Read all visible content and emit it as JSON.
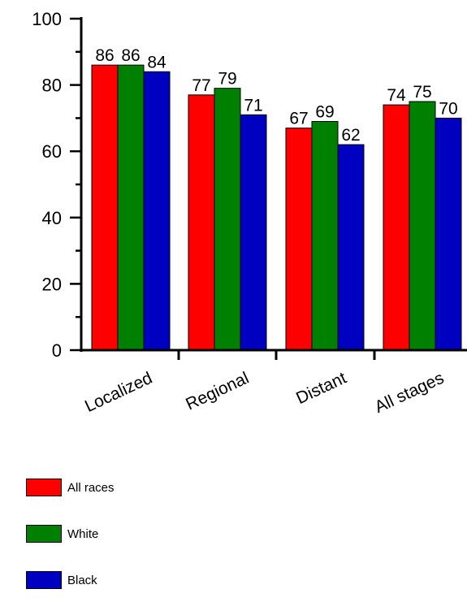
{
  "chart_data": {
    "type": "bar",
    "categories": [
      "Localized",
      "Regional",
      "Distant",
      "All stages"
    ],
    "series": [
      {
        "name": "All races",
        "color": "#ff0000",
        "values": [
          86,
          77,
          67,
          74
        ]
      },
      {
        "name": "White",
        "color": "#008000",
        "values": [
          86,
          79,
          69,
          75
        ]
      },
      {
        "name": "Black",
        "color": "#0000c0",
        "values": [
          84,
          71,
          62,
          70
        ]
      }
    ],
    "ylim": [
      0,
      100
    ],
    "yticks": [
      0,
      20,
      40,
      60,
      80,
      100
    ],
    "legend_position": "bottom-left"
  }
}
